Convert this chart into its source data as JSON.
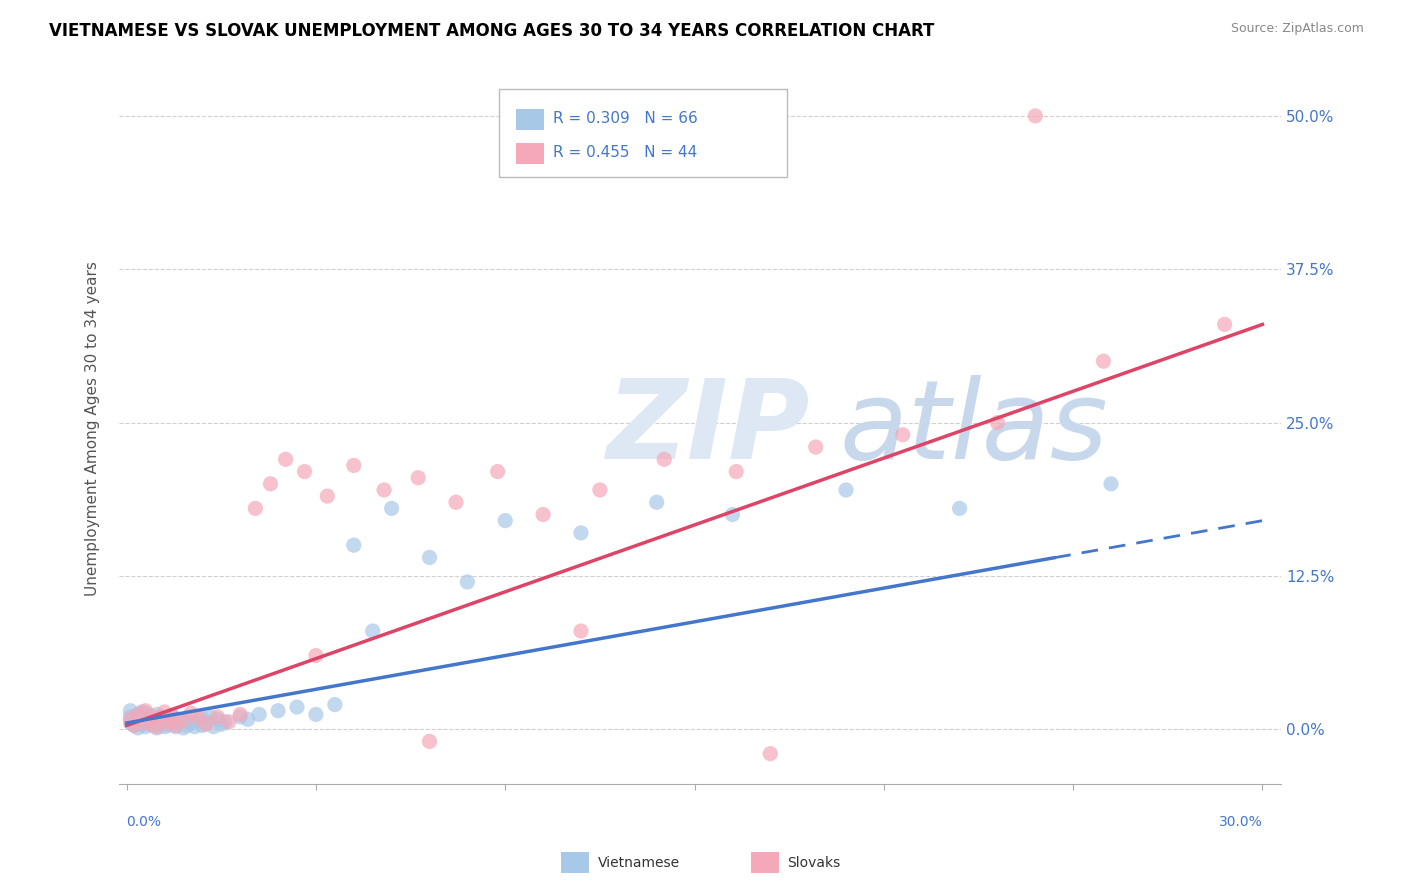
{
  "title": "VIETNAMESE VS SLOVAK UNEMPLOYMENT AMONG AGES 30 TO 34 YEARS CORRELATION CHART",
  "source": "Source: ZipAtlas.com",
  "ylabel": "Unemployment Among Ages 30 to 34 years",
  "ytick_labels": [
    "0.0%",
    "12.5%",
    "25.0%",
    "37.5%",
    "50.0%"
  ],
  "ytick_values": [
    0.0,
    0.125,
    0.25,
    0.375,
    0.5
  ],
  "xlim": [
    -0.002,
    0.305
  ],
  "ylim": [
    -0.045,
    0.535
  ],
  "vietnamese_color": "#a8c8e8",
  "slovak_color": "#f4a8b8",
  "viet_line_color": "#4477cc",
  "slovak_line_color": "#dd4466",
  "watermark_color": "#dde8f4",
  "R_viet": 0.309,
  "N_viet": 66,
  "R_slovak": 0.455,
  "N_slovak": 44,
  "viet_scatter_x": [
    0.001,
    0.001,
    0.001,
    0.002,
    0.002,
    0.003,
    0.003,
    0.003,
    0.004,
    0.004,
    0.004,
    0.005,
    0.005,
    0.005,
    0.006,
    0.006,
    0.007,
    0.007,
    0.008,
    0.008,
    0.008,
    0.009,
    0.009,
    0.01,
    0.01,
    0.011,
    0.011,
    0.012,
    0.012,
    0.013,
    0.013,
    0.014,
    0.015,
    0.015,
    0.016,
    0.016,
    0.017,
    0.018,
    0.019,
    0.02,
    0.02,
    0.021,
    0.022,
    0.023,
    0.024,
    0.025,
    0.026,
    0.03,
    0.032,
    0.035,
    0.04,
    0.045,
    0.05,
    0.055,
    0.06,
    0.065,
    0.07,
    0.08,
    0.09,
    0.1,
    0.12,
    0.14,
    0.16,
    0.19,
    0.22,
    0.26
  ],
  "viet_scatter_y": [
    0.005,
    0.01,
    0.015,
    0.003,
    0.008,
    0.001,
    0.006,
    0.012,
    0.004,
    0.009,
    0.014,
    0.002,
    0.007,
    0.013,
    0.005,
    0.011,
    0.003,
    0.008,
    0.001,
    0.006,
    0.012,
    0.004,
    0.01,
    0.002,
    0.007,
    0.003,
    0.009,
    0.005,
    0.011,
    0.002,
    0.008,
    0.006,
    0.001,
    0.007,
    0.003,
    0.009,
    0.005,
    0.002,
    0.007,
    0.003,
    0.009,
    0.005,
    0.01,
    0.002,
    0.008,
    0.004,
    0.006,
    0.01,
    0.008,
    0.012,
    0.015,
    0.018,
    0.012,
    0.02,
    0.15,
    0.08,
    0.18,
    0.14,
    0.12,
    0.17,
    0.16,
    0.185,
    0.175,
    0.195,
    0.18,
    0.2
  ],
  "slovak_scatter_x": [
    0.001,
    0.002,
    0.003,
    0.004,
    0.005,
    0.006,
    0.007,
    0.008,
    0.009,
    0.01,
    0.011,
    0.012,
    0.013,
    0.015,
    0.017,
    0.019,
    0.021,
    0.024,
    0.027,
    0.03,
    0.034,
    0.038,
    0.042,
    0.047,
    0.053,
    0.06,
    0.068,
    0.077,
    0.087,
    0.098,
    0.11,
    0.125,
    0.142,
    0.161,
    0.182,
    0.205,
    0.23,
    0.258,
    0.29,
    0.05,
    0.08,
    0.12,
    0.17,
    0.24
  ],
  "slovak_scatter_y": [
    0.008,
    0.003,
    0.012,
    0.006,
    0.015,
    0.004,
    0.01,
    0.002,
    0.008,
    0.014,
    0.005,
    0.011,
    0.003,
    0.007,
    0.013,
    0.009,
    0.004,
    0.01,
    0.006,
    0.012,
    0.18,
    0.2,
    0.22,
    0.21,
    0.19,
    0.215,
    0.195,
    0.205,
    0.185,
    0.21,
    0.175,
    0.195,
    0.22,
    0.21,
    0.23,
    0.24,
    0.25,
    0.3,
    0.33,
    0.06,
    -0.01,
    0.08,
    -0.02,
    0.5
  ],
  "viet_line_x": [
    0.0,
    0.3
  ],
  "viet_line_y": [
    0.005,
    0.17
  ],
  "slovak_line_x": [
    0.0,
    0.3
  ],
  "slovak_line_y": [
    0.003,
    0.33
  ]
}
